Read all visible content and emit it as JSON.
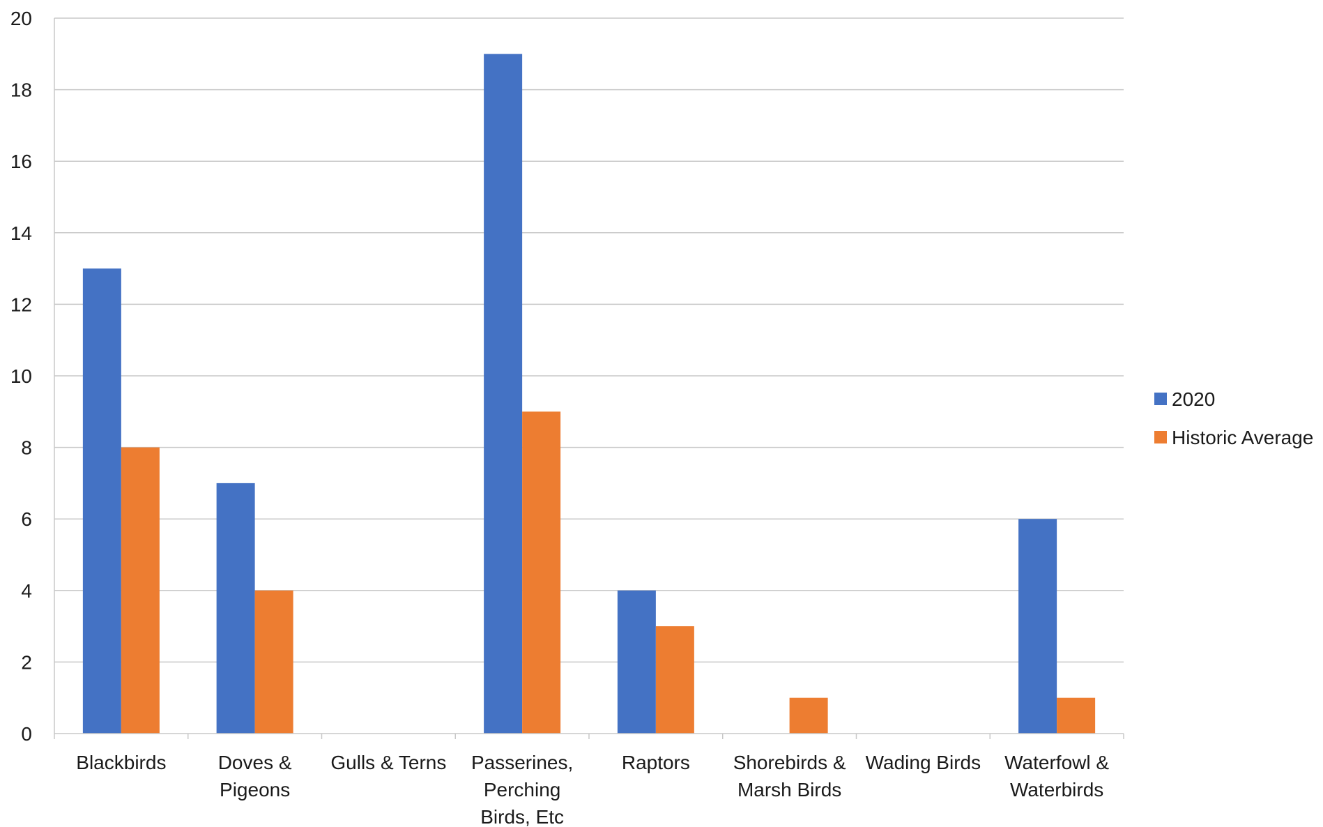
{
  "chart_data": {
    "type": "bar",
    "categories": [
      [
        "Blackbirds"
      ],
      [
        "Doves &",
        "Pigeons"
      ],
      [
        "Gulls & Terns"
      ],
      [
        "Passerines,",
        "Perching",
        "Birds, Etc"
      ],
      [
        "Raptors"
      ],
      [
        "Shorebirds &",
        "Marsh Birds"
      ],
      [
        "Wading Birds"
      ],
      [
        "Waterfowl &",
        "Waterbirds"
      ]
    ],
    "series": [
      {
        "name": "2020",
        "color": "#4472C4",
        "values": [
          13,
          7,
          0,
          19,
          4,
          0,
          0,
          6
        ]
      },
      {
        "name": "Historic Average",
        "color": "#ED7D31",
        "values": [
          8,
          4,
          0,
          9,
          3,
          1,
          0,
          1
        ]
      }
    ],
    "ylim": [
      0,
      20
    ],
    "yticks": [
      0,
      2,
      4,
      6,
      8,
      10,
      12,
      14,
      16,
      18,
      20
    ],
    "grid": true,
    "legend_position": "right"
  }
}
